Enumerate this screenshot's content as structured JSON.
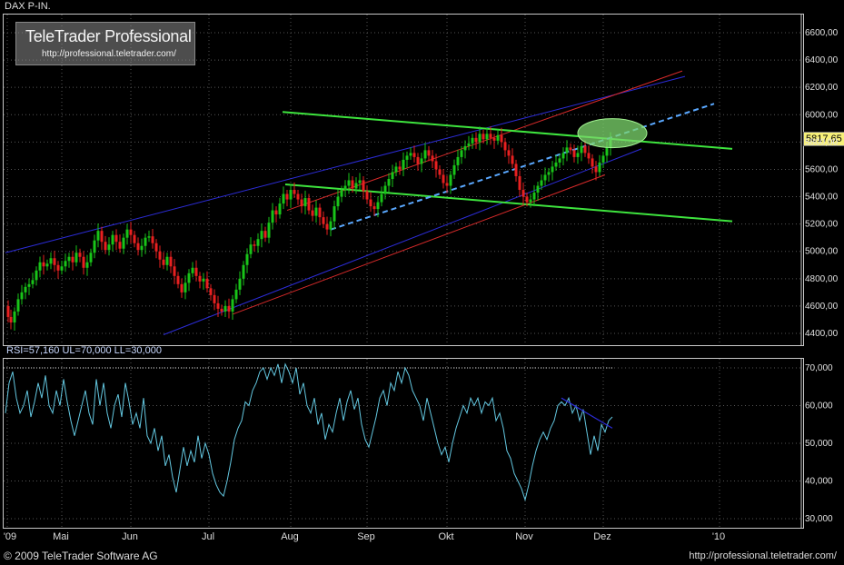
{
  "chart_data": {
    "type": "candlestick",
    "title": "DAX P-IN.",
    "y_ticks": [
      6600,
      6400,
      6200,
      6000,
      5800,
      5600,
      5400,
      5200,
      5000,
      4800,
      4600,
      4400
    ],
    "y_tick_labels": [
      "6600,00",
      "6400,00",
      "6200,00",
      "6000,00",
      "5800,00",
      "5600,00",
      "5400,00",
      "5200,00",
      "5000,00",
      "4800,00",
      "4600,00",
      "4400,00"
    ],
    "ylim": [
      4300,
      6750
    ],
    "x_labels": [
      "'09",
      "Mai",
      "Jun",
      "Jul",
      "Aug",
      "Sep",
      "Okt",
      "Nov",
      "Dez",
      "'10"
    ],
    "last_price": 5817.65,
    "last_price_label": "5817,65",
    "price_path": [
      [
        0,
        4600
      ],
      [
        3,
        4520
      ],
      [
        6,
        4480
      ],
      [
        10,
        4560
      ],
      [
        14,
        4650
      ],
      [
        18,
        4700
      ],
      [
        22,
        4740
      ],
      [
        26,
        4760
      ],
      [
        30,
        4790
      ],
      [
        34,
        4860
      ],
      [
        38,
        4920
      ],
      [
        42,
        4890
      ],
      [
        46,
        4910
      ],
      [
        50,
        4950
      ],
      [
        54,
        4900
      ],
      [
        58,
        4860
      ],
      [
        62,
        4890
      ],
      [
        66,
        4930
      ],
      [
        70,
        4960
      ],
      [
        74,
        4920
      ],
      [
        78,
        4990
      ],
      [
        82,
        4960
      ],
      [
        86,
        4880
      ],
      [
        90,
        4920
      ],
      [
        94,
        4990
      ],
      [
        98,
        5080
      ],
      [
        102,
        5150
      ],
      [
        106,
        5070
      ],
      [
        110,
        5010
      ],
      [
        114,
        5050
      ],
      [
        118,
        5120
      ],
      [
        122,
        5070
      ],
      [
        126,
        5020
      ],
      [
        130,
        5100
      ],
      [
        134,
        5160
      ],
      [
        138,
        5120
      ],
      [
        142,
        5060
      ],
      [
        146,
        5010
      ],
      [
        150,
        5040
      ],
      [
        154,
        5100
      ],
      [
        158,
        5110
      ],
      [
        162,
        5060
      ],
      [
        166,
        5000
      ],
      [
        170,
        4940
      ],
      [
        174,
        4900
      ],
      [
        178,
        4960
      ],
      [
        182,
        4890
      ],
      [
        186,
        4820
      ],
      [
        190,
        4760
      ],
      [
        194,
        4700
      ],
      [
        198,
        4770
      ],
      [
        202,
        4840
      ],
      [
        206,
        4880
      ],
      [
        210,
        4820
      ],
      [
        214,
        4780
      ],
      [
        218,
        4800
      ],
      [
        222,
        4730
      ],
      [
        226,
        4680
      ],
      [
        230,
        4620
      ],
      [
        234,
        4580
      ],
      [
        238,
        4560
      ],
      [
        242,
        4600
      ],
      [
        246,
        4560
      ],
      [
        250,
        4650
      ],
      [
        254,
        4720
      ],
      [
        258,
        4800
      ],
      [
        262,
        4900
      ],
      [
        266,
        4980
      ],
      [
        270,
        5050
      ],
      [
        274,
        5040
      ],
      [
        278,
        5090
      ],
      [
        282,
        5150
      ],
      [
        286,
        5100
      ],
      [
        290,
        5210
      ],
      [
        294,
        5300
      ],
      [
        298,
        5270
      ],
      [
        302,
        5350
      ],
      [
        306,
        5420
      ],
      [
        310,
        5380
      ],
      [
        314,
        5450
      ],
      [
        318,
        5420
      ],
      [
        322,
        5380
      ],
      [
        326,
        5330
      ],
      [
        330,
        5390
      ],
      [
        334,
        5300
      ],
      [
        338,
        5260
      ],
      [
        342,
        5320
      ],
      [
        346,
        5250
      ],
      [
        350,
        5200
      ],
      [
        354,
        5160
      ],
      [
        358,
        5220
      ],
      [
        362,
        5330
      ],
      [
        366,
        5400
      ],
      [
        370,
        5450
      ],
      [
        374,
        5480
      ],
      [
        378,
        5520
      ],
      [
        382,
        5460
      ],
      [
        386,
        5500
      ],
      [
        390,
        5520
      ],
      [
        394,
        5440
      ],
      [
        398,
        5380
      ],
      [
        402,
        5330
      ],
      [
        406,
        5310
      ],
      [
        410,
        5360
      ],
      [
        414,
        5420
      ],
      [
        418,
        5480
      ],
      [
        422,
        5530
      ],
      [
        426,
        5580
      ],
      [
        430,
        5620
      ],
      [
        434,
        5600
      ],
      [
        438,
        5670
      ],
      [
        442,
        5700
      ],
      [
        446,
        5720
      ],
      [
        450,
        5690
      ],
      [
        454,
        5640
      ],
      [
        458,
        5680
      ],
      [
        462,
        5740
      ],
      [
        466,
        5700
      ],
      [
        470,
        5660
      ],
      [
        474,
        5600
      ],
      [
        478,
        5560
      ],
      [
        482,
        5500
      ],
      [
        486,
        5480
      ],
      [
        490,
        5560
      ],
      [
        494,
        5630
      ],
      [
        498,
        5690
      ],
      [
        502,
        5740
      ],
      [
        506,
        5770
      ],
      [
        510,
        5790
      ],
      [
        514,
        5830
      ],
      [
        518,
        5800
      ],
      [
        522,
        5860
      ],
      [
        526,
        5820
      ],
      [
        530,
        5860
      ],
      [
        534,
        5830
      ],
      [
        538,
        5810
      ],
      [
        542,
        5850
      ],
      [
        546,
        5800
      ],
      [
        550,
        5740
      ],
      [
        554,
        5700
      ],
      [
        558,
        5640
      ],
      [
        562,
        5550
      ],
      [
        566,
        5450
      ],
      [
        570,
        5400
      ],
      [
        574,
        5360
      ],
      [
        578,
        5380
      ],
      [
        582,
        5430
      ],
      [
        586,
        5480
      ],
      [
        590,
        5520
      ],
      [
        594,
        5560
      ],
      [
        598,
        5580
      ],
      [
        602,
        5620
      ],
      [
        606,
        5650
      ],
      [
        610,
        5680
      ],
      [
        614,
        5720
      ],
      [
        618,
        5760
      ],
      [
        622,
        5740
      ],
      [
        626,
        5690
      ],
      [
        630,
        5720
      ],
      [
        634,
        5770
      ],
      [
        638,
        5720
      ],
      [
        642,
        5680
      ],
      [
        646,
        5620
      ],
      [
        650,
        5580
      ],
      [
        654,
        5650
      ],
      [
        658,
        5700
      ],
      [
        662,
        5760
      ],
      [
        666,
        5817
      ]
    ],
    "rsi": {
      "label": "RSI=57,160 UL=70,000 LL=30,000",
      "y_ticks": [
        70,
        60,
        50,
        40,
        30
      ],
      "y_tick_labels": [
        "70,000",
        "60,000",
        "50,000",
        "40,000",
        "30,000"
      ],
      "ylim": [
        28,
        72
      ],
      "upper_limit": 70,
      "last": 57.16,
      "path": [
        [
          0,
          58
        ],
        [
          4,
          66
        ],
        [
          8,
          69
        ],
        [
          12,
          62
        ],
        [
          16,
          58
        ],
        [
          20,
          60
        ],
        [
          24,
          64
        ],
        [
          28,
          57
        ],
        [
          32,
          61
        ],
        [
          36,
          66
        ],
        [
          40,
          62
        ],
        [
          44,
          68
        ],
        [
          48,
          60
        ],
        [
          52,
          58
        ],
        [
          56,
          64
        ],
        [
          60,
          60
        ],
        [
          64,
          67
        ],
        [
          68,
          61
        ],
        [
          72,
          56
        ],
        [
          76,
          52
        ],
        [
          80,
          56
        ],
        [
          84,
          60
        ],
        [
          88,
          64
        ],
        [
          92,
          58
        ],
        [
          96,
          55
        ],
        [
          100,
          67
        ],
        [
          104,
          60
        ],
        [
          108,
          66
        ],
        [
          112,
          58
        ],
        [
          116,
          54
        ],
        [
          120,
          60
        ],
        [
          124,
          63
        ],
        [
          128,
          57
        ],
        [
          132,
          66
        ],
        [
          136,
          61
        ],
        [
          140,
          55
        ],
        [
          144,
          58
        ],
        [
          148,
          54
        ],
        [
          152,
          62
        ],
        [
          156,
          52
        ],
        [
          160,
          50
        ],
        [
          164,
          54
        ],
        [
          168,
          48
        ],
        [
          172,
          52
        ],
        [
          176,
          44
        ],
        [
          180,
          47
        ],
        [
          184,
          41
        ],
        [
          188,
          37
        ],
        [
          192,
          43
        ],
        [
          196,
          49
        ],
        [
          200,
          44
        ],
        [
          204,
          48
        ],
        [
          208,
          45
        ],
        [
          212,
          52
        ],
        [
          216,
          46
        ],
        [
          220,
          50
        ],
        [
          224,
          47
        ],
        [
          228,
          42
        ],
        [
          232,
          39
        ],
        [
          236,
          37
        ],
        [
          240,
          36
        ],
        [
          244,
          40
        ],
        [
          248,
          45
        ],
        [
          252,
          51
        ],
        [
          256,
          54
        ],
        [
          260,
          56
        ],
        [
          264,
          61
        ],
        [
          268,
          60
        ],
        [
          272,
          64
        ],
        [
          276,
          66
        ],
        [
          280,
          69
        ],
        [
          284,
          70
        ],
        [
          288,
          67
        ],
        [
          292,
          70
        ],
        [
          296,
          68
        ],
        [
          300,
          71
        ],
        [
          304,
          66
        ],
        [
          308,
          71
        ],
        [
          312,
          69
        ],
        [
          316,
          66
        ],
        [
          320,
          70
        ],
        [
          324,
          63
        ],
        [
          328,
          66
        ],
        [
          332,
          60
        ],
        [
          336,
          58
        ],
        [
          340,
          62
        ],
        [
          344,
          55
        ],
        [
          348,
          58
        ],
        [
          352,
          51
        ],
        [
          356,
          55
        ],
        [
          360,
          53
        ],
        [
          364,
          58
        ],
        [
          368,
          62
        ],
        [
          372,
          56
        ],
        [
          376,
          61
        ],
        [
          380,
          64
        ],
        [
          384,
          59
        ],
        [
          388,
          62
        ],
        [
          392,
          55
        ],
        [
          396,
          51
        ],
        [
          400,
          49
        ],
        [
          404,
          53
        ],
        [
          408,
          57
        ],
        [
          412,
          62
        ],
        [
          416,
          64
        ],
        [
          420,
          60
        ],
        [
          424,
          66
        ],
        [
          428,
          64
        ],
        [
          432,
          69
        ],
        [
          436,
          66
        ],
        [
          440,
          70
        ],
        [
          444,
          68
        ],
        [
          448,
          64
        ],
        [
          452,
          62
        ],
        [
          456,
          60
        ],
        [
          460,
          56
        ],
        [
          464,
          62
        ],
        [
          468,
          58
        ],
        [
          472,
          54
        ],
        [
          476,
          50
        ],
        [
          480,
          47
        ],
        [
          484,
          49
        ],
        [
          488,
          45
        ],
        [
          492,
          50
        ],
        [
          496,
          54
        ],
        [
          500,
          57
        ],
        [
          504,
          60
        ],
        [
          508,
          58
        ],
        [
          512,
          62
        ],
        [
          516,
          60
        ],
        [
          520,
          62
        ],
        [
          524,
          58
        ],
        [
          528,
          61
        ],
        [
          532,
          60
        ],
        [
          536,
          62
        ],
        [
          540,
          56
        ],
        [
          544,
          58
        ],
        [
          548,
          54
        ],
        [
          552,
          48
        ],
        [
          556,
          46
        ],
        [
          560,
          42
        ],
        [
          564,
          40
        ],
        [
          568,
          38
        ],
        [
          572,
          35
        ],
        [
          576,
          39
        ],
        [
          580,
          44
        ],
        [
          584,
          48
        ],
        [
          588,
          51
        ],
        [
          592,
          53
        ],
        [
          596,
          51
        ],
        [
          600,
          54
        ],
        [
          604,
          56
        ],
        [
          608,
          60
        ],
        [
          612,
          61
        ],
        [
          616,
          60
        ],
        [
          620,
          62
        ],
        [
          624,
          58
        ],
        [
          628,
          60
        ],
        [
          632,
          56
        ],
        [
          636,
          59
        ],
        [
          640,
          53
        ],
        [
          644,
          47
        ],
        [
          648,
          52
        ],
        [
          652,
          48
        ],
        [
          656,
          55
        ],
        [
          660,
          53
        ],
        [
          664,
          56
        ],
        [
          668,
          57
        ]
      ]
    }
  },
  "header": {
    "title": "DAX P-IN."
  },
  "logo": {
    "name": "TeleTrader Professional",
    "url": "http://professional.teletrader.com/"
  },
  "footer": {
    "copyright": "© 2009 TeleTrader Software AG",
    "url": "http://professional.teletrader.com/"
  },
  "colors": {
    "bull": "#19c419",
    "bear": "#e82020",
    "channel_blue": "#2c2cd8",
    "channel_red": "#d82a2a",
    "trend_green": "#3ee43e",
    "trend_dash": "#5aa8ff",
    "rsi_line": "#63c7e0",
    "ellipse": "#7ed86e"
  }
}
